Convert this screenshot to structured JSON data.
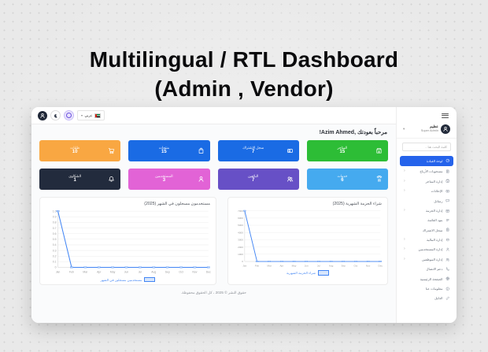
{
  "page": {
    "title_line1": "Multilingual / RTL Dashboard",
    "title_line2": "(Admin , Vendor)"
  },
  "navbar": {
    "avatar_icon": "user-avatar-icon",
    "dark_mode_icon": "moon-icon",
    "accent_icon": "translate-toggle-icon",
    "language_selector": {
      "flag_icon": "flag-icon",
      "selected": "عربي"
    }
  },
  "sidebar": {
    "toggle_icon": "hamburger-icon",
    "profile": {
      "name": "عظيم",
      "role": "Super Admin"
    },
    "search_placeholder": "كلمة البحث هنا...",
    "items": [
      {
        "label": "لوحة القيادة",
        "icon": "gauge-icon",
        "active": true,
        "expandable": false
      },
      {
        "label": "مسحوبات الأرباح",
        "icon": "document-icon",
        "active": false,
        "expandable": true
      },
      {
        "label": "إدارة المتاجر",
        "icon": "store-icon",
        "active": false,
        "expandable": true
      },
      {
        "label": "الإعلانات",
        "icon": "video-icon",
        "active": false,
        "expandable": true
      },
      {
        "label": "رسائل",
        "icon": "chat-icon",
        "active": false,
        "expandable": false
      },
      {
        "label": "إدارة الحزمة",
        "icon": "box-icon",
        "active": false,
        "expandable": true
      },
      {
        "label": "بنود القائمة",
        "icon": "list-icon",
        "active": false,
        "expandable": false
      },
      {
        "label": "سجل الاشتراك",
        "icon": "clipboard-icon",
        "active": false,
        "expandable": false
      },
      {
        "label": "إدارة المالية",
        "icon": "coins-icon",
        "active": false,
        "expandable": true
      },
      {
        "label": "إدارة المستخدمين",
        "icon": "user-icon",
        "active": false,
        "expandable": true
      },
      {
        "label": "إدارة الموظفين",
        "icon": "users-icon",
        "active": false,
        "expandable": true
      },
      {
        "label": "دعم الاتصال",
        "icon": "phone-icon",
        "active": false,
        "expandable": false
      },
      {
        "label": "الصفحة الرئيسية",
        "icon": "globe-icon",
        "active": false,
        "expandable": false
      },
      {
        "label": "معلومات عنا",
        "icon": "info-icon",
        "active": false,
        "expandable": false
      },
      {
        "label": "الدليل",
        "icon": "link-icon",
        "active": false,
        "expandable": false
      }
    ]
  },
  "main": {
    "welcome": "مرحباً بعودتك ,Azim Ahmed!",
    "stat_cards": [
      {
        "label": "المتاجر",
        "value": "15",
        "color": "#2dbd36",
        "icon": "store-icon"
      },
      {
        "label": "سجل الاشتراك",
        "value": "7",
        "color": "#1a6be4",
        "icon": "sim-icon"
      },
      {
        "label": "منتجات",
        "value": "15",
        "color": "#1a6be4",
        "icon": "bag-icon"
      },
      {
        "label": "طلبات",
        "value": "10",
        "color": "#f9a742",
        "icon": "cart-icon"
      },
      {
        "label": "خدمات",
        "value": "6",
        "color": "#45aaef",
        "icon": "hand-signal-icon"
      },
      {
        "label": "البائعين",
        "value": "7",
        "color": "#6750c6",
        "icon": "users-icon"
      },
      {
        "label": "المستخدمين",
        "value": "3",
        "color": "#e263d6",
        "icon": "user-icon"
      },
      {
        "label": "الشكاوى",
        "value": "1",
        "color": "#222b3d",
        "icon": "bell-icon"
      }
    ],
    "footer": "حقوق النشر © 2025 ، كل الحقوق محفوظة."
  },
  "chart_data": [
    {
      "type": "line",
      "title": "شراء الحزمة الشهرية (2025)",
      "x": [
        "Jan",
        "Feb",
        "Mar",
        "Apr",
        "May",
        "Jun",
        "Jul",
        "Aug",
        "Sep",
        "Oct",
        "Nov",
        "Dec"
      ],
      "series": [
        {
          "name": "شراء الحزمة الشهرية",
          "values": [
            7000,
            0,
            0,
            0,
            0,
            0,
            0,
            0,
            0,
            0,
            0,
            0
          ]
        }
      ],
      "xlabel": "",
      "ylabel": "",
      "ylim": [
        0,
        7000
      ],
      "ytick_step": 1000,
      "grid": true,
      "legend_position": "bottom",
      "line_color": "#4285f4"
    },
    {
      "type": "line",
      "title": "مستخدمون مسجلون في الشهر (2025)",
      "x": [
        "Jan",
        "Feb",
        "Mar",
        "Apr",
        "May",
        "Jun",
        "Jul",
        "Aug",
        "Sep",
        "Oct",
        "Nov",
        "Dec"
      ],
      "series": [
        {
          "name": "مستخدمين مسجلين في الشهر",
          "values": [
            1,
            0,
            0,
            0,
            0,
            0,
            0,
            0,
            0,
            0,
            0,
            0
          ]
        }
      ],
      "xlabel": "",
      "ylabel": "",
      "ylim": [
        0,
        1.0
      ],
      "ytick_step": 0.1,
      "grid": true,
      "legend_position": "bottom",
      "line_color": "#4285f4"
    }
  ]
}
